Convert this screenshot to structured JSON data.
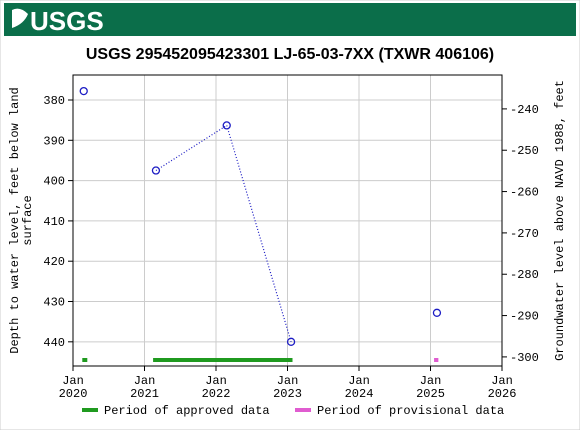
{
  "logo": "USGS",
  "chart_data": {
    "type": "line",
    "title": "USGS 295452095423301 LJ-65-03-7XX (TXWR 406106)",
    "y_label": [
      "Depth to water level, feet below land",
      "surface"
    ],
    "y2_label": "Groundwater level above NAVD 1988, feet",
    "x": [
      2020.15,
      null,
      2021.16,
      2022.15,
      2023.05,
      null,
      2025.09
    ],
    "series": [
      {
        "name": "Depth to water level",
        "color": "#1c1cc4",
        "values": [
          377.8,
          null,
          397.5,
          386.3,
          440.0,
          null,
          432.8
        ]
      }
    ],
    "xlim": [
      2020,
      2026
    ],
    "xticks": [
      {
        "value": 2020,
        "label": [
          "Jan",
          "2020"
        ]
      },
      {
        "value": 2021,
        "label": [
          "Jan",
          "2021"
        ]
      },
      {
        "value": 2022,
        "label": [
          "Jan",
          "2022"
        ]
      },
      {
        "value": 2023,
        "label": [
          "Jan",
          "2023"
        ]
      },
      {
        "value": 2024,
        "label": [
          "Jan",
          "2024"
        ]
      },
      {
        "value": 2025,
        "label": [
          "Jan",
          "2025"
        ]
      },
      {
        "value": 2026,
        "label": [
          "Jan",
          "2026"
        ]
      }
    ],
    "ylim": [
      446,
      373.8
    ],
    "yticks": [
      380,
      390,
      400,
      410,
      420,
      430,
      440
    ],
    "y2lim": [
      -302.2,
      -231.8
    ],
    "y2ticks": [
      -240,
      -250,
      -260,
      -270,
      -280,
      -290,
      -300
    ],
    "grid": true,
    "periods": [
      {
        "name": "Period of approved data",
        "color": "#1f9a1f",
        "ranges": [
          [
            2020.13,
            2020.2
          ],
          [
            2021.12,
            2023.07
          ]
        ]
      },
      {
        "name": "Period of provisional data",
        "color": "#e05cd0",
        "ranges": [
          [
            2025.05,
            2025.11
          ]
        ]
      }
    ]
  }
}
